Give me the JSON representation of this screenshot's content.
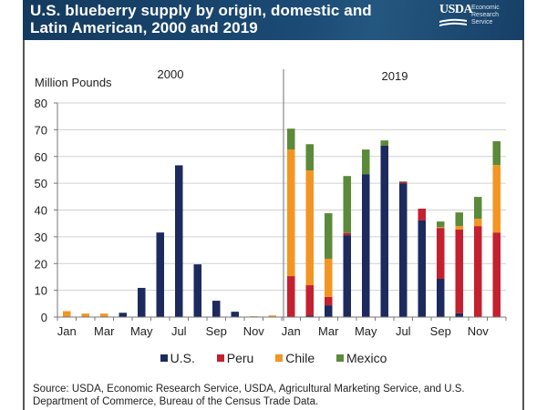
{
  "header": {
    "title_line1": "U.S. blueberry supply by origin, domestic and",
    "title_line2": "Latin American, 2000 and 2019",
    "logo_mark": "USDA",
    "logo_text": [
      "Economic",
      "Research",
      "Service"
    ]
  },
  "colors": {
    "header_bg": "#1b4a74",
    "us": "#1c2a5e",
    "peru": "#c4202f",
    "chile": "#f39523",
    "mexico": "#5b8a3a"
  },
  "legend": [
    {
      "label": "U.S.",
      "key": "us"
    },
    {
      "label": "Peru",
      "key": "peru"
    },
    {
      "label": "Chile",
      "key": "chile"
    },
    {
      "label": "Mexico",
      "key": "mexico"
    }
  ],
  "source": "Source: USDA, Economic Research Service, USDA, Agricultural Marketing Service, and U.S. Department of Commerce, Bureau of the Census Trade Data.",
  "chart_data": {
    "type": "bar",
    "stacked": true,
    "title": "U.S. blueberry supply by origin, domestic and Latin American, 2000 and 2019",
    "ylabel": "Million Pounds",
    "xlabel": "",
    "ylim": [
      0,
      80
    ],
    "yticks": [
      0,
      10,
      20,
      30,
      40,
      50,
      60,
      70,
      80
    ],
    "grid": true,
    "legend_position": "bottom",
    "groups": [
      {
        "label": "2000",
        "months": [
          "Jan",
          "Feb",
          "Mar",
          "Apr",
          "May",
          "Jun",
          "Jul",
          "Aug",
          "Sep",
          "Oct",
          "Nov",
          "Dec"
        ]
      },
      {
        "label": "2019",
        "months": [
          "Jan",
          "Feb",
          "Mar",
          "Apr",
          "May",
          "Jun",
          "Jul",
          "Aug",
          "Sep",
          "Oct",
          "Nov",
          "Dec"
        ]
      }
    ],
    "tick_labels": [
      "Jan",
      "",
      "Mar",
      "",
      "May",
      "",
      "Jul",
      "",
      "Sep",
      "",
      "Nov",
      "",
      "Jan",
      "",
      "Mar",
      "",
      "May",
      "",
      "Jul",
      "",
      "Sep",
      "",
      "Nov",
      ""
    ],
    "categories": [
      "Jan 2000",
      "Feb 2000",
      "Mar 2000",
      "Apr 2000",
      "May 2000",
      "Jun 2000",
      "Jul 2000",
      "Aug 2000",
      "Sep 2000",
      "Oct 2000",
      "Nov 2000",
      "Dec 2000",
      "Jan 2019",
      "Feb 2019",
      "Mar 2019",
      "Apr 2019",
      "May 2019",
      "Jun 2019",
      "Jul 2019",
      "Aug 2019",
      "Sep 2019",
      "Oct 2019",
      "Nov 2019",
      "Dec 2019"
    ],
    "series": [
      {
        "name": "U.S.",
        "key": "us",
        "values": [
          0,
          0,
          0,
          1.6,
          10.9,
          31.6,
          56.7,
          19.7,
          6.1,
          2.0,
          0,
          0,
          0,
          0.5,
          4.4,
          30.6,
          53.4,
          64.0,
          50.0,
          36.1,
          14.3,
          1.4,
          0,
          0
        ]
      },
      {
        "name": "Peru",
        "key": "peru",
        "values": [
          0,
          0,
          0,
          0,
          0,
          0,
          0,
          0,
          0,
          0,
          0,
          0,
          15.3,
          11.4,
          3.1,
          0.8,
          0,
          0,
          0.5,
          4.4,
          19.0,
          31.3,
          34.0,
          31.6
        ]
      },
      {
        "name": "Chile",
        "key": "chile",
        "values": [
          2.2,
          1.3,
          1.3,
          0,
          0,
          0,
          0,
          0,
          0,
          0,
          0.3,
          0.6,
          47.3,
          42.9,
          14.3,
          0,
          0,
          0,
          0,
          0,
          0.3,
          1.3,
          2.7,
          25.2
        ]
      },
      {
        "name": "Mexico",
        "key": "mexico",
        "values": [
          0,
          0,
          0,
          0,
          0,
          0,
          0,
          0,
          0,
          0,
          0,
          0,
          7.8,
          9.8,
          17.0,
          21.3,
          9.2,
          2.0,
          0.2,
          0,
          2.1,
          5.1,
          8.2,
          8.9
        ]
      }
    ]
  }
}
